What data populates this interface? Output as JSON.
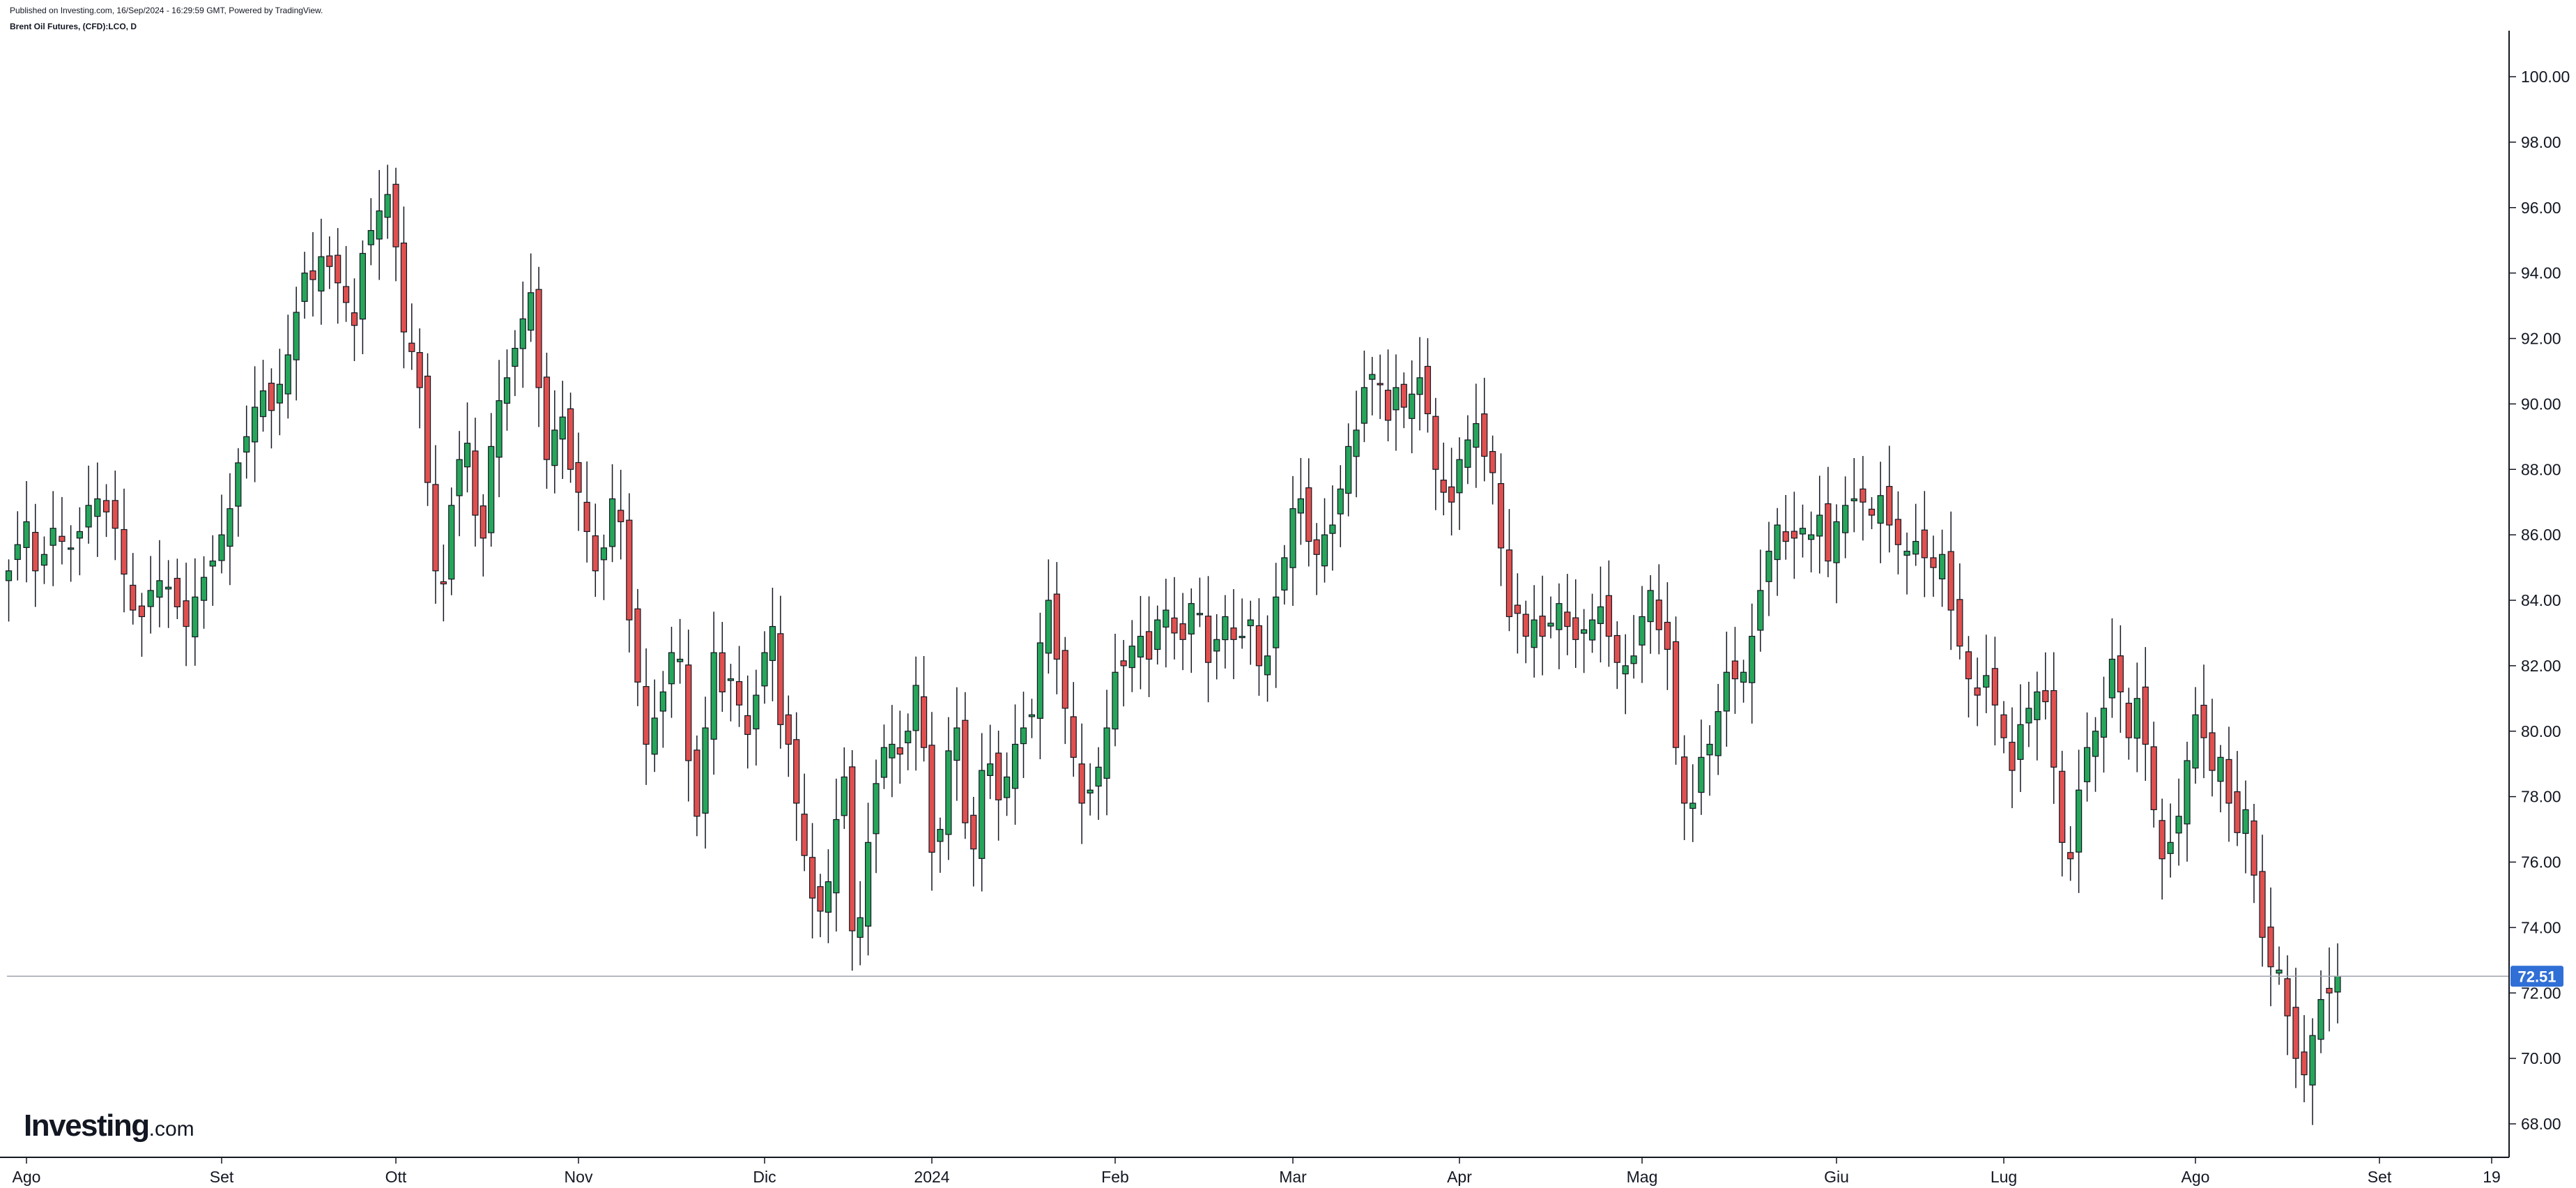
{
  "header": {
    "published": "Published on Investing.com, 16/Sep/2024 - 16:29:59 GMT, Powered by TradingView.",
    "symbol": "Brent Oil Futures, (CFD):LCO, D"
  },
  "logo": {
    "name": "Investing",
    "suffix": ".com"
  },
  "colors": {
    "up": "#26a65b",
    "down": "#e0504f",
    "wick": "#131722",
    "grid_line": "#9fa3ad",
    "price_tag": "#2f6fd6",
    "axis": "#131722"
  },
  "chart_data": {
    "type": "candlestick",
    "title": "Brent Oil Futures, (CFD):LCO, D",
    "ylim": [
      67.0,
      101.0
    ],
    "y_ticks": [
      "100.00",
      "98.00",
      "96.00",
      "94.00",
      "92.00",
      "90.00",
      "88.00",
      "86.00",
      "84.00",
      "82.00",
      "80.00",
      "78.00",
      "76.00",
      "74.00",
      "72.00",
      "70.00",
      "68.00"
    ],
    "x_ticks": [
      "Ago",
      "Set",
      "Ott",
      "Nov",
      "Dic",
      "2024",
      "Feb",
      "Mar",
      "Apr",
      "Mag",
      "Giu",
      "Lug",
      "Ago",
      "Set",
      "19"
    ],
    "last_price": 72.51,
    "last_price_label": "72.51",
    "grid": false,
    "sessions_per_tick": [
      22,
      21,
      23,
      22,
      21,
      22,
      21,
      21,
      22,
      23,
      19,
      23,
      22,
      10
    ],
    "closes": [
      84.9,
      85.7,
      86.4,
      84.9,
      85.4,
      86.2,
      85.8,
      85.6,
      86.1,
      86.9,
      87.1,
      86.7,
      86.2,
      84.8,
      83.7,
      83.5,
      84.3,
      84.6,
      84.4,
      83.8,
      83.2,
      84.1,
      84.7,
      85.2,
      86.0,
      86.8,
      88.2,
      89.0,
      89.9,
      90.4,
      89.8,
      90.6,
      91.5,
      92.8,
      94.0,
      93.8,
      94.5,
      94.2,
      93.7,
      93.1,
      92.4,
      94.6,
      95.3,
      95.9,
      96.4,
      94.8,
      92.2,
      91.6,
      90.5,
      87.6,
      84.9,
      84.5,
      86.9,
      88.3,
      88.8,
      86.6,
      85.9,
      88.7,
      90.1,
      90.8,
      91.7,
      92.6,
      93.4,
      90.5,
      88.3,
      89.2,
      89.6,
      88.0,
      87.3,
      86.1,
      84.9,
      85.6,
      87.1,
      86.4,
      83.4,
      81.5,
      79.6,
      80.4,
      81.2,
      82.4,
      82.2,
      79.1,
      77.4,
      80.1,
      82.4,
      81.2,
      81.6,
      80.8,
      79.9,
      81.1,
      82.4,
      83.2,
      80.2,
      79.6,
      77.8,
      76.2,
      74.9,
      74.5,
      75.4,
      77.3,
      78.6,
      73.9,
      74.3,
      76.6,
      78.4,
      79.5,
      79.6,
      79.3,
      80.0,
      81.4,
      79.5,
      76.3,
      77.0,
      79.4,
      80.1,
      77.2,
      76.4,
      78.8,
      79.0,
      77.9,
      78.6,
      79.6,
      80.1,
      80.5,
      82.7,
      84.0,
      82.2,
      80.7,
      79.2,
      77.8,
      78.2,
      78.9,
      80.1,
      81.8,
      82.0,
      82.6,
      82.9,
      82.2,
      83.4,
      83.7,
      83.0,
      82.8,
      83.9,
      83.6,
      82.1,
      82.8,
      83.5,
      82.8,
      82.9,
      83.4,
      82.0,
      82.3,
      84.1,
      85.3,
      86.8,
      87.1,
      85.8,
      85.4,
      86.0,
      86.3,
      87.4,
      88.7,
      89.2,
      90.5,
      90.9,
      90.6,
      89.5,
      90.5,
      89.9,
      90.3,
      90.8,
      89.7,
      88.0,
      87.3,
      87.0,
      88.3,
      88.9,
      89.4,
      88.4,
      87.9,
      85.6,
      83.5,
      83.6,
      82.9,
      83.4,
      82.9,
      83.3,
      83.9,
      83.2,
      82.8,
      83.1,
      83.4,
      83.8,
      82.9,
      82.1,
      82.0,
      82.3,
      83.5,
      84.3,
      83.1,
      82.5,
      79.5,
      77.8,
      77.8,
      79.2,
      79.6,
      80.6,
      81.8,
      81.6,
      81.8,
      82.9,
      84.3,
      85.5,
      86.3,
      85.8,
      85.9,
      86.2,
      86.0,
      86.6,
      85.2,
      86.4,
      86.9,
      87.1,
      87.0,
      86.6,
      87.2,
      86.3,
      85.7,
      85.5,
      85.8,
      85.3,
      85.0,
      85.4,
      83.7,
      82.6,
      81.6,
      81.1,
      81.7,
      80.8,
      79.8,
      78.8,
      80.2,
      80.7,
      81.2,
      80.9,
      78.9,
      76.6,
      76.1,
      78.2,
      79.5,
      80.0,
      80.7,
      82.2,
      81.2,
      79.8,
      81.0,
      79.6,
      77.6,
      76.1,
      76.6,
      77.4,
      79.1,
      80.5,
      79.8,
      78.8,
      79.2,
      77.8,
      76.9,
      77.6,
      75.6,
      73.7,
      72.8,
      72.7,
      71.3,
      70.0,
      69.5,
      70.7,
      71.8,
      72.0,
      72.51
    ]
  }
}
